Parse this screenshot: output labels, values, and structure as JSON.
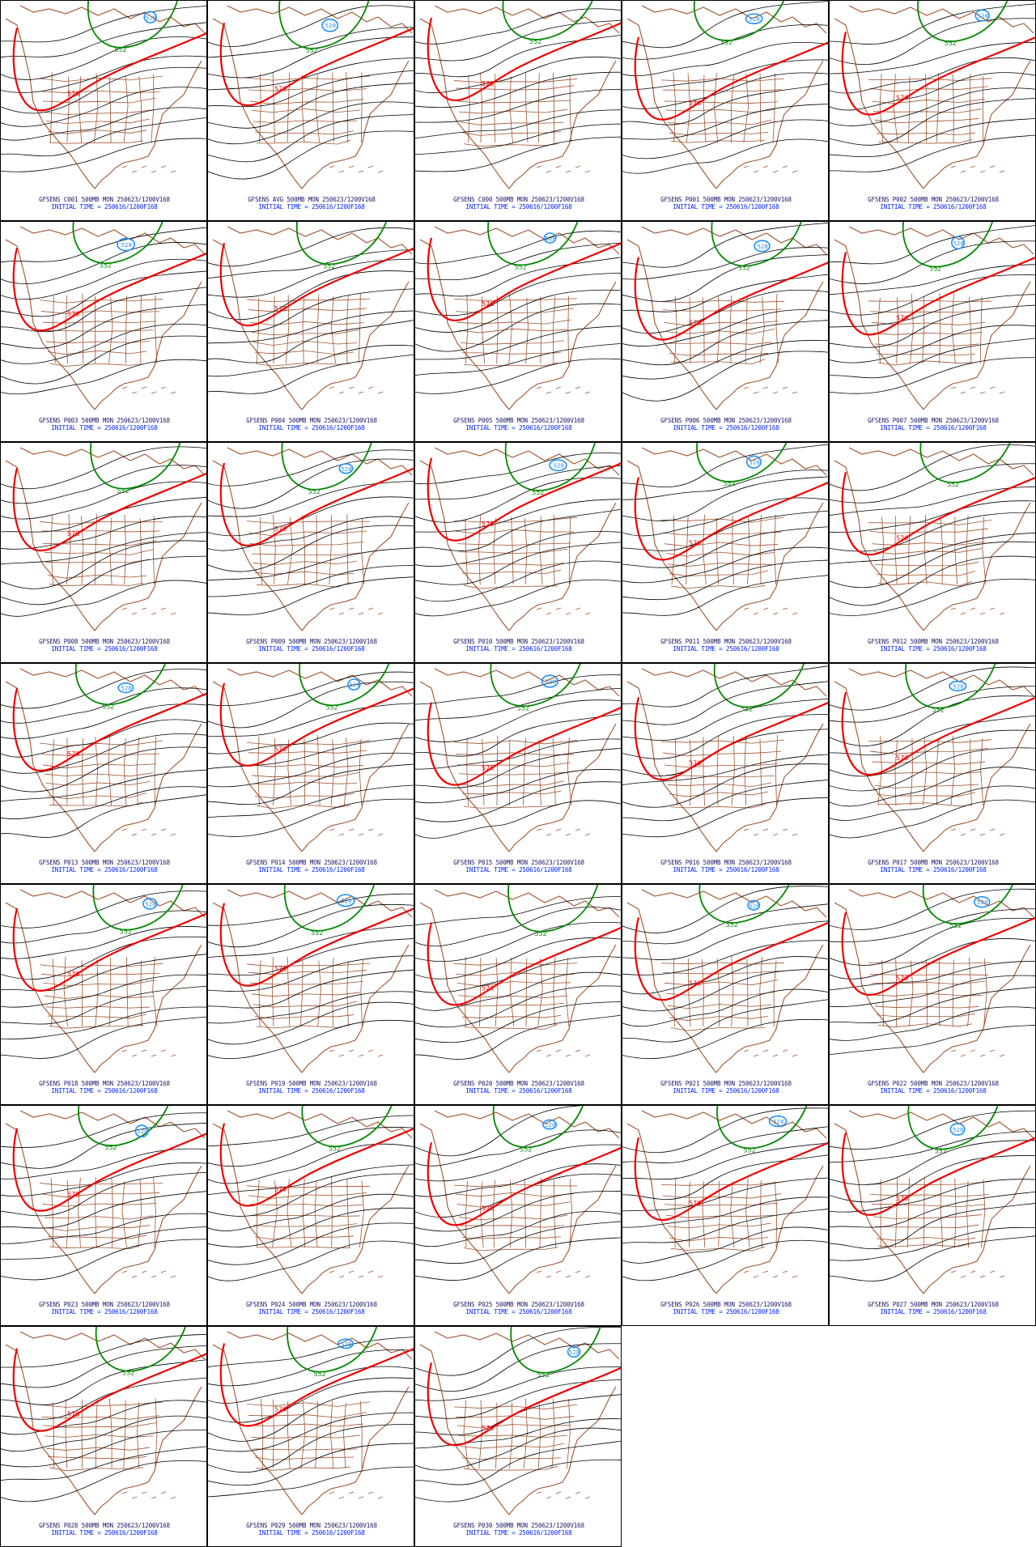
{
  "figure": {
    "product": "GFSENS",
    "level": "500MB",
    "valid": "MON 250623/1200V168",
    "initial_time": "INITIAL TIME = 250616/1200F168",
    "contour_labels": {
      "red": "576",
      "green": "552",
      "blue": "528"
    },
    "colors": {
      "red": "#ee0000",
      "green": "#008800",
      "blue": "#1e90ff",
      "black": "#000000",
      "borders": "#a0522d"
    }
  },
  "panels": [
    {
      "caption": "GFSENS C001 500MB MON 250623/1200V168",
      "init": "INITIAL TIME = 250616/1200F168"
    },
    {
      "caption": "GFSENS AVG 500MB MON 250623/1200V168",
      "init": "INITIAL TIME = 250616/1200F168"
    },
    {
      "caption": "GFSENS C000 500MB MON 250623/1200V168",
      "init": "INITIAL TIME = 250616/1200F168"
    },
    {
      "caption": "GFSENS P001 500MB MON 250623/1200V168",
      "init": "INITIAL TIME = 250616/1200F168"
    },
    {
      "caption": "GFSENS P002 500MB MON 250623/1200V168",
      "init": "INITIAL TIME = 250616/1200F168"
    },
    {
      "caption": "GFSENS P003 500MB MON 250623/1200V168",
      "init": "INITIAL TIME = 250616/1200F168"
    },
    {
      "caption": "GFSENS P004 500MB MON 250623/1200V168",
      "init": "INITIAL TIME = 250616/1200F168"
    },
    {
      "caption": "GFSENS P005 500MB MON 250623/1200V168",
      "init": "INITIAL TIME = 250616/1200F168"
    },
    {
      "caption": "GFSENS P006 500MB MON 250623/1200V168",
      "init": "INITIAL TIME = 250616/1200F168"
    },
    {
      "caption": "GFSENS P007 500MB MON 250623/1200V168",
      "init": "INITIAL TIME = 250616/1200F168"
    },
    {
      "caption": "GFSENS P008 500MB MON 250623/1200V168",
      "init": "INITIAL TIME = 250616/1200F168"
    },
    {
      "caption": "GFSENS P009 500MB MON 250623/1200V168",
      "init": "INITIAL TIME = 250616/1200F168"
    },
    {
      "caption": "GFSENS P010 500MB MON 250623/1200V168",
      "init": "INITIAL TIME = 250616/1200F168"
    },
    {
      "caption": "GFSENS P011 500MB MON 250623/1200V168",
      "init": "INITIAL TIME = 250616/1200F168"
    },
    {
      "caption": "GFSENS P012 500MB MON 250623/1200V168",
      "init": "INITIAL TIME = 250616/1200F168"
    },
    {
      "caption": "GFSENS P013 500MB MON 250623/1200V168",
      "init": "INITIAL TIME = 250616/1200F168"
    },
    {
      "caption": "GFSENS P014 500MB MON 250623/1200V168",
      "init": "INITIAL TIME = 250616/1200F168"
    },
    {
      "caption": "GFSENS P015 500MB MON 250623/1200V168",
      "init": "INITIAL TIME = 250616/1200F168"
    },
    {
      "caption": "GFSENS P016 500MB MON 250623/1200V168",
      "init": "INITIAL TIME = 250616/1200F168"
    },
    {
      "caption": "GFSENS P017 500MB MON 250623/1200V168",
      "init": "INITIAL TIME = 250616/1200F168"
    },
    {
      "caption": "GFSENS P018 500MB MON 250623/1200V168",
      "init": "INITIAL TIME = 250616/1200F168"
    },
    {
      "caption": "GFSENS P019 500MB MON 250623/1200V168",
      "init": "INITIAL TIME = 250616/1200F168"
    },
    {
      "caption": "GFSENS P020 500MB MON 250623/1200V168",
      "init": "INITIAL TIME = 250616/1200F168"
    },
    {
      "caption": "GFSENS P021 500MB MON 250623/1200V168",
      "init": "INITIAL TIME = 250616/1200F168"
    },
    {
      "caption": "GFSENS P022 500MB MON 250623/1200V168",
      "init": "INITIAL TIME = 250616/1200F168"
    },
    {
      "caption": "GFSENS P023 500MB MON 250623/1200V168",
      "init": "INITIAL TIME = 250616/1200F168"
    },
    {
      "caption": "GFSENS P024 500MB MON 250623/1200V168",
      "init": "INITIAL TIME = 250616/1200F168"
    },
    {
      "caption": "GFSENS P025 500MB MON 250623/1200V168",
      "init": "INITIAL TIME = 250616/1200F168"
    },
    {
      "caption": "GFSENS P026 500MB MON 250623/1200V168",
      "init": "INITIAL TIME = 250616/1200F168"
    },
    {
      "caption": "GFSENS P027 500MB MON 250623/1200V168",
      "init": "INITIAL TIME = 250616/1200F168"
    },
    {
      "caption": "GFSENS P028 500MB MON 250623/1200V168",
      "init": "INITIAL TIME = 250616/1200F168"
    },
    {
      "caption": "GFSENS P029 500MB MON 250623/1200V168",
      "init": "INITIAL TIME = 250616/1200F168"
    },
    {
      "caption": "GFSENS P030 500MB MON 250623/1200V168",
      "init": "INITIAL TIME = 250616/1200F168"
    }
  ]
}
